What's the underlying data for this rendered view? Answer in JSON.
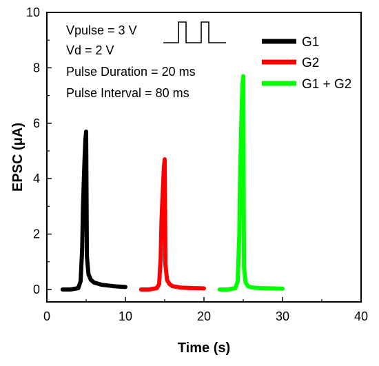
{
  "chart_data": {
    "type": "line",
    "xlabel": "Time (s)",
    "ylabel": "EPSC (μA)",
    "xlim": [
      0,
      40
    ],
    "ylim": [
      0,
      10
    ],
    "x_ticks": [
      0,
      10,
      20,
      30,
      40
    ],
    "y_ticks": [
      0,
      2,
      4,
      6,
      8,
      10
    ],
    "grid": false,
    "legend_position": "top-right",
    "annotations": [
      "Vpulse = 3 V",
      "Vd = 2 V",
      "Pulse Duration = 20 ms",
      "Pulse Interval = 80 ms"
    ],
    "series": [
      {
        "name": "G1",
        "color": "#000000",
        "x": [
          2.0,
          3.0,
          4.0,
          4.3,
          4.5,
          4.6,
          4.8,
          4.9,
          5.0,
          5.1,
          5.3,
          5.6,
          6.0,
          7.0,
          8.5,
          10.0
        ],
        "y": [
          0.0,
          0.0,
          0.05,
          0.3,
          1.5,
          3.0,
          4.7,
          5.4,
          5.7,
          1.2,
          0.55,
          0.35,
          0.25,
          0.17,
          0.12,
          0.09
        ]
      },
      {
        "name": "G2",
        "color": "#ff0000",
        "x": [
          12.0,
          13.0,
          14.0,
          14.3,
          14.5,
          14.6,
          14.8,
          14.9,
          15.0,
          15.1,
          15.3,
          15.6,
          16.0,
          17.0,
          18.5,
          20.0
        ],
        "y": [
          0.0,
          0.0,
          0.05,
          0.2,
          1.2,
          2.5,
          3.8,
          4.4,
          4.7,
          0.9,
          0.35,
          0.2,
          0.12,
          0.07,
          0.05,
          0.04
        ]
      },
      {
        "name": "G1 + G2",
        "color": "#00ff00",
        "x": [
          22.0,
          23.0,
          24.0,
          24.3,
          24.5,
          24.6,
          24.8,
          24.9,
          25.0,
          25.1,
          25.3,
          25.6,
          26.0,
          27.0,
          28.5,
          30.0
        ],
        "y": [
          0.0,
          0.0,
          0.05,
          0.3,
          2.0,
          4.0,
          6.5,
          7.4,
          7.7,
          0.8,
          0.25,
          0.12,
          0.08,
          0.05,
          0.04,
          0.03
        ]
      }
    ]
  }
}
